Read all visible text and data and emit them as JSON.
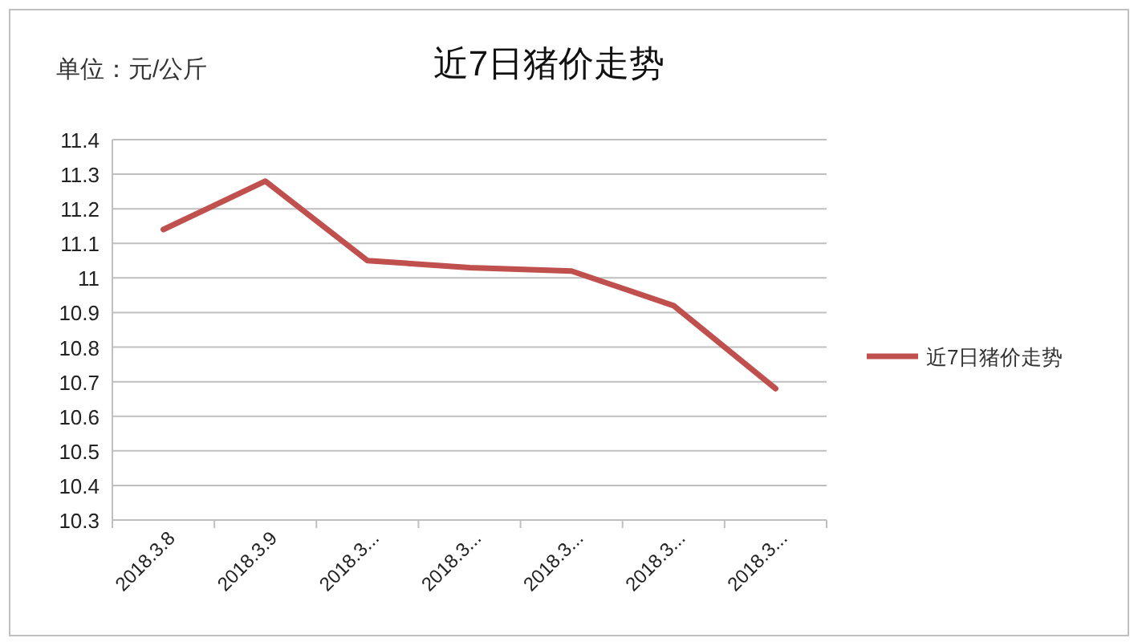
{
  "chart_data": {
    "type": "line",
    "title": "近7日猪价走势",
    "annotations": [
      "单位：元/公斤"
    ],
    "categories": [
      "2018.3.8",
      "2018.3.9",
      "2018.3...",
      "2018.3...",
      "2018.3...",
      "2018.3...",
      "2018.3..."
    ],
    "series": [
      {
        "name": "近7日猪价走势",
        "color": "#c0504d",
        "values": [
          11.14,
          11.28,
          11.05,
          11.03,
          11.02,
          10.92,
          10.68
        ]
      }
    ],
    "ylim": [
      10.3,
      11.4
    ],
    "yticks": [
      10.3,
      10.4,
      10.5,
      10.6,
      10.7,
      10.8,
      10.9,
      11,
      11.1,
      11.2,
      11.3,
      11.4
    ],
    "grid": "y",
    "legend": "right",
    "marker": "none",
    "line_style": "solid"
  }
}
